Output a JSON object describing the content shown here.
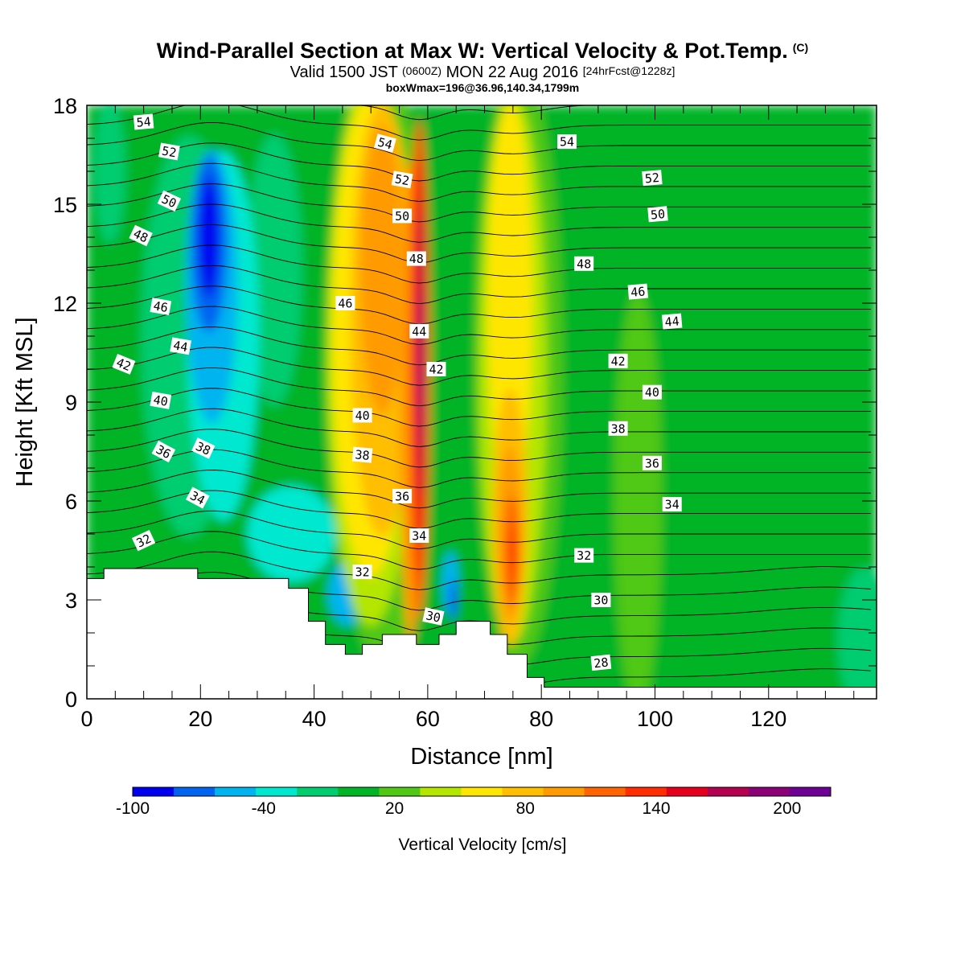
{
  "title": {
    "main": "Wind-Parallel Section at Max W: Vertical Velocity & Pot.Temp.",
    "copyright": "(C)",
    "valid_prefix": "Valid 1500 JST",
    "valid_z": "(0600Z)",
    "valid_date": "MON 22 Aug 2016",
    "forecast": "[24hrFcst@1228z]",
    "boxmax": "boxWmax=196@36.96,140.34,1799m"
  },
  "chart_data": {
    "type": "heatmap",
    "xlabel": "Distance [nm]",
    "ylabel": "Height [Kft MSL]",
    "xlim": [
      0,
      139
    ],
    "ylim": [
      0,
      18
    ],
    "xticks": [
      0,
      20,
      40,
      60,
      80,
      100,
      120
    ],
    "yticks": [
      0,
      3,
      6,
      9,
      12,
      15,
      18
    ],
    "xtick_labels": [
      "0",
      "20",
      "40",
      "60",
      "80",
      "100",
      "120"
    ],
    "ytick_labels": [
      "0",
      "3",
      "6",
      "9",
      "12",
      "15",
      "18"
    ],
    "colorbar": {
      "title": "Vertical Velocity [cm/s]",
      "levels": [
        -100,
        -80,
        -60,
        -40,
        -20,
        0,
        20,
        40,
        60,
        80,
        100,
        120,
        140,
        160,
        180,
        200,
        220
      ],
      "labels": [
        "-100",
        "-40",
        "20",
        "80",
        "140",
        "200"
      ],
      "label_values": [
        -100,
        -40,
        20,
        80,
        140,
        200
      ],
      "colors": [
        "#0000f0",
        "#0064f0",
        "#00b4f0",
        "#00e8d0",
        "#00cc70",
        "#00b428",
        "#50c814",
        "#b4e600",
        "#ffe600",
        "#ffbe00",
        "#ff9b00",
        "#ff6400",
        "#ff2d00",
        "#e6001e",
        "#b40050",
        "#8c0078",
        "#6e0096"
      ]
    },
    "updraft_core": {
      "x": 58.5,
      "height_kft": [
        3,
        17.5
      ],
      "peak_w_cm_s": 196
    },
    "secondary_updraft": {
      "x": 75,
      "height_kft": [
        2.5,
        17
      ],
      "peak_w_cm_s": 140
    },
    "downdraft_core": {
      "x": 21,
      "height_kft": [
        11.5,
        16.5
      ],
      "min_w_cm_s": -100
    },
    "terrain_kft": [
      [
        0,
        3.65
      ],
      [
        3,
        3.65
      ],
      [
        3,
        3.95
      ],
      [
        19.5,
        3.95
      ],
      [
        19.5,
        3.65
      ],
      [
        35.5,
        3.65
      ],
      [
        35.5,
        3.35
      ],
      [
        39,
        3.35
      ],
      [
        39,
        2.35
      ],
      [
        42,
        2.35
      ],
      [
        42,
        1.65
      ],
      [
        45.5,
        1.65
      ],
      [
        45.5,
        1.35
      ],
      [
        48.5,
        1.35
      ],
      [
        48.5,
        1.65
      ],
      [
        52,
        1.65
      ],
      [
        52,
        1.95
      ],
      [
        58,
        1.95
      ],
      [
        58,
        1.65
      ],
      [
        62,
        1.65
      ],
      [
        62,
        1.95
      ],
      [
        65,
        1.95
      ],
      [
        65,
        2.35
      ],
      [
        71,
        2.35
      ],
      [
        71,
        1.95
      ],
      [
        74,
        1.95
      ],
      [
        74,
        1.35
      ],
      [
        77.5,
        1.35
      ],
      [
        77.5,
        0.65
      ],
      [
        80.5,
        0.65
      ],
      [
        80.5,
        0.35
      ],
      [
        139,
        0.35
      ]
    ],
    "theta_contours": [
      {
        "label": "28",
        "x": 90.5,
        "y": 1.1,
        "angle": -6
      },
      {
        "label": "30",
        "x": 61,
        "y": 2.5,
        "angle": 12
      },
      {
        "label": "30",
        "x": 90.5,
        "y": 3.0,
        "angle": 0
      },
      {
        "label": "32",
        "x": 10,
        "y": 4.8,
        "angle": -25
      },
      {
        "label": "32",
        "x": 48.5,
        "y": 3.85,
        "angle": 0
      },
      {
        "label": "32",
        "x": 87.5,
        "y": 4.35,
        "angle": 0
      },
      {
        "label": "34",
        "x": 19.5,
        "y": 6.1,
        "angle": 28
      },
      {
        "label": "34",
        "x": 58.5,
        "y": 4.95,
        "angle": 0
      },
      {
        "label": "34",
        "x": 103,
        "y": 5.9,
        "angle": 0
      },
      {
        "label": "36",
        "x": 13.5,
        "y": 7.5,
        "angle": 28
      },
      {
        "label": "36",
        "x": 55.5,
        "y": 6.15,
        "angle": 0
      },
      {
        "label": "36",
        "x": 99.5,
        "y": 7.15,
        "angle": 0
      },
      {
        "label": "38",
        "x": 20.5,
        "y": 7.6,
        "angle": 25
      },
      {
        "label": "38",
        "x": 48.5,
        "y": 7.4,
        "angle": 5
      },
      {
        "label": "38",
        "x": 93.5,
        "y": 8.2,
        "angle": 0
      },
      {
        "label": "40",
        "x": 13,
        "y": 9.05,
        "angle": 10
      },
      {
        "label": "40",
        "x": 48.5,
        "y": 8.6,
        "angle": 0
      },
      {
        "label": "40",
        "x": 99.5,
        "y": 9.3,
        "angle": 0
      },
      {
        "label": "42",
        "x": 6.5,
        "y": 10.15,
        "angle": 22
      },
      {
        "label": "42",
        "x": 61.5,
        "y": 10.0,
        "angle": 0
      },
      {
        "label": "42",
        "x": 93.5,
        "y": 10.25,
        "angle": 0
      },
      {
        "label": "44",
        "x": 16.5,
        "y": 10.7,
        "angle": 10
      },
      {
        "label": "44",
        "x": 58.5,
        "y": 11.15,
        "angle": 0
      },
      {
        "label": "44",
        "x": 103,
        "y": 11.45,
        "angle": -5
      },
      {
        "label": "46",
        "x": 13,
        "y": 11.9,
        "angle": 10
      },
      {
        "label": "46",
        "x": 45.5,
        "y": 12.0,
        "angle": 0
      },
      {
        "label": "46",
        "x": 97,
        "y": 12.35,
        "angle": -5
      },
      {
        "label": "48",
        "x": 9.5,
        "y": 14.05,
        "angle": 25
      },
      {
        "label": "48",
        "x": 58,
        "y": 13.35,
        "angle": 0
      },
      {
        "label": "48",
        "x": 87.5,
        "y": 13.2,
        "angle": 0
      },
      {
        "label": "50",
        "x": 14.5,
        "y": 15.1,
        "angle": 25
      },
      {
        "label": "50",
        "x": 55.5,
        "y": 14.65,
        "angle": 0
      },
      {
        "label": "50",
        "x": 100.5,
        "y": 14.7,
        "angle": -5
      },
      {
        "label": "52",
        "x": 14.5,
        "y": 16.6,
        "angle": 10
      },
      {
        "label": "52",
        "x": 55.5,
        "y": 15.75,
        "angle": 10
      },
      {
        "label": "52",
        "x": 99.5,
        "y": 15.8,
        "angle": -5
      },
      {
        "label": "54",
        "x": 10,
        "y": 17.5,
        "angle": -5
      },
      {
        "label": "54",
        "x": 52.5,
        "y": 16.85,
        "angle": 15
      },
      {
        "label": "54",
        "x": 84.5,
        "y": 16.9,
        "angle": 0
      }
    ]
  }
}
